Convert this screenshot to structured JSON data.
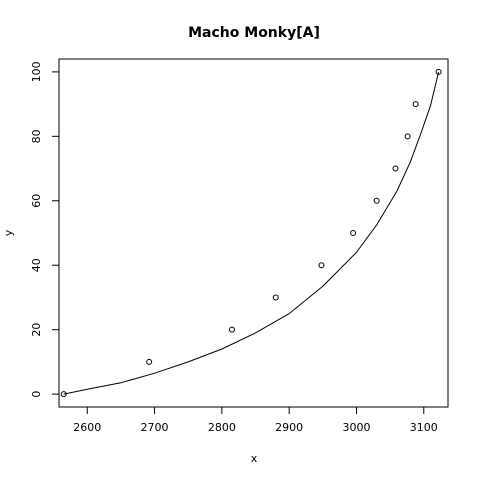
{
  "chart_data": {
    "type": "scatter",
    "title": "Macho Monky[A]",
    "xlabel": "x",
    "ylabel": "y",
    "xlim": [
      2558,
      3136
    ],
    "ylim": [
      -4,
      104
    ],
    "x_ticks": [
      2600,
      2700,
      2800,
      2900,
      3000,
      3100
    ],
    "y_ticks": [
      0,
      20,
      40,
      60,
      80,
      100
    ],
    "grid": false,
    "series": [
      {
        "type": "scatter",
        "marker": "open-circle",
        "x": [
          2565,
          2692,
          2815,
          2880,
          2948,
          2995,
          3030,
          3058,
          3076,
          3088,
          3122
        ],
        "y": [
          0,
          10,
          20,
          30,
          40,
          50,
          60,
          70,
          80,
          90,
          100
        ]
      },
      {
        "type": "line",
        "x": [
          2565,
          2600,
          2650,
          2700,
          2750,
          2800,
          2850,
          2900,
          2950,
          3000,
          3030,
          3060,
          3080,
          3095,
          3110,
          3122
        ],
        "y": [
          0,
          1.5,
          3.5,
          6.5,
          10,
          14,
          19,
          25,
          33.5,
          44,
          52.5,
          63,
          72,
          80.5,
          89.5,
          100
        ]
      }
    ]
  }
}
